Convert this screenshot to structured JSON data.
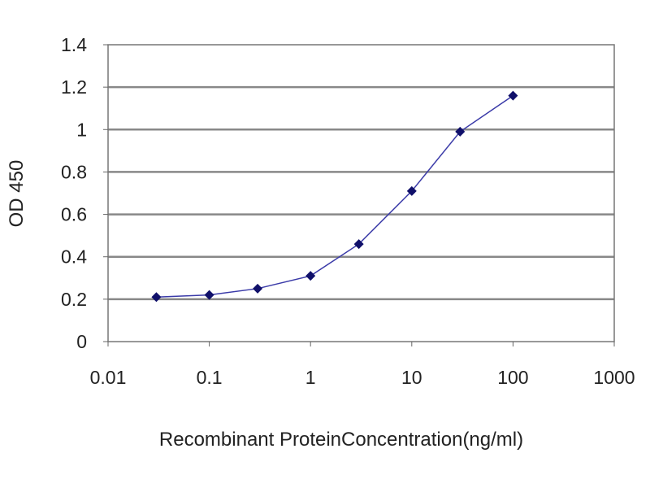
{
  "chart_data": {
    "type": "line",
    "title": "",
    "xlabel": "Recombinant ProteinConcentration(ng/ml)",
    "ylabel": "OD 450",
    "x_scale": "log",
    "xlim": [
      0.01,
      1000
    ],
    "ylim": [
      0,
      1.4
    ],
    "x_ticks": [
      "0.01",
      "0.1",
      "1",
      "10",
      "100",
      "1000"
    ],
    "y_ticks": [
      "0",
      "0.2",
      "0.4",
      "0.6",
      "0.8",
      "1",
      "1.2",
      "1.4"
    ],
    "grid": "horizontal",
    "series": [
      {
        "x": [
          0.03,
          0.1,
          0.3,
          1,
          3,
          10,
          30,
          100
        ],
        "y": [
          0.21,
          0.22,
          0.25,
          0.31,
          0.46,
          0.71,
          0.99,
          1.16
        ]
      }
    ],
    "colors": {
      "line": "#3a3aa8",
      "marker": "#10106a",
      "grid": "#888888",
      "axis": "#666666"
    }
  }
}
